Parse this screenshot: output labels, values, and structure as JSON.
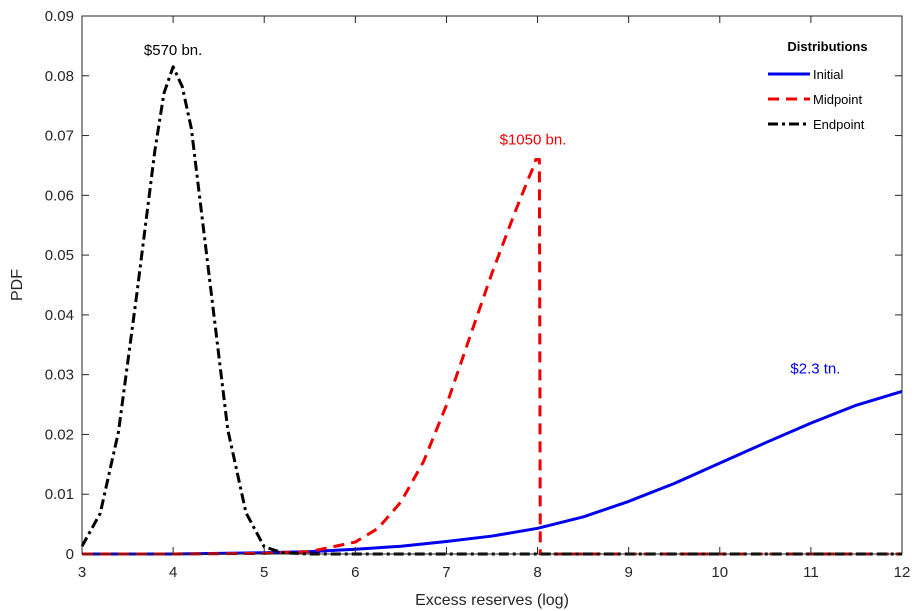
{
  "chart_data": {
    "type": "line",
    "title": "",
    "xlabel": "Excess reserves (log)",
    "ylabel": "PDF",
    "xlim": [
      3,
      12
    ],
    "ylim": [
      0,
      0.09
    ],
    "xticks": [
      "3",
      "4",
      "5",
      "6",
      "7",
      "8",
      "9",
      "10",
      "11",
      "12"
    ],
    "yticks": [
      "0",
      "0.01",
      "0.02",
      "0.03",
      "0.04",
      "0.05",
      "0.06",
      "0.07",
      "0.08",
      "0.09"
    ],
    "grid": false,
    "legend": {
      "title": "Distributions",
      "placement": "top-right"
    },
    "series": [
      {
        "name": "Initial",
        "color": "#0000ee",
        "style": "solid",
        "x": [
          3,
          4,
          5,
          5.5,
          6,
          6.5,
          7,
          7.5,
          8,
          8.5,
          9,
          9.5,
          10,
          10.5,
          11,
          11.5,
          12
        ],
        "y": [
          0.0,
          0.0,
          0.0002,
          0.0004,
          0.0008,
          0.0013,
          0.0021,
          0.003,
          0.0043,
          0.0062,
          0.0088,
          0.0118,
          0.0152,
          0.0186,
          0.0219,
          0.0249,
          0.0272
        ]
      },
      {
        "name": "Midpoint",
        "color": "#ee0000",
        "style": "dashed",
        "x": [
          3,
          4,
          5,
          5.5,
          6,
          6.25,
          6.5,
          6.75,
          7,
          7.25,
          7.5,
          7.75,
          7.9,
          7.97,
          7.98,
          8.02,
          8.03,
          9,
          10,
          11,
          12
        ],
        "y": [
          0.0,
          0.0,
          0.0001,
          0.0004,
          0.002,
          0.0043,
          0.0087,
          0.0155,
          0.0249,
          0.036,
          0.047,
          0.0571,
          0.0628,
          0.0653,
          0.066,
          0.066,
          0.0,
          0.0,
          0.0,
          0.0,
          0.0
        ]
      },
      {
        "name": "Endpoint",
        "color": "#000000",
        "style": "dash-dot",
        "x": [
          3,
          3.2,
          3.4,
          3.6,
          3.8,
          3.9,
          4.0,
          4.1,
          4.2,
          4.4,
          4.6,
          4.8,
          5.0,
          5.2,
          5.5,
          6,
          7,
          8,
          9,
          10,
          11,
          12
        ],
        "y": [
          0.0013,
          0.0068,
          0.0204,
          0.0433,
          0.0675,
          0.0771,
          0.0815,
          0.0782,
          0.0712,
          0.046,
          0.0208,
          0.0069,
          0.0012,
          0.0002,
          0.0,
          0.0,
          0.0,
          0.0,
          0.0,
          0.0,
          0.0,
          0.0
        ]
      }
    ],
    "annotations": [
      {
        "text": "$570 bn.",
        "x": 4.0,
        "y": 0.0835,
        "color": "#000000"
      },
      {
        "text": "$1050 bn.",
        "x": 7.95,
        "y": 0.0685,
        "color": "#ee0000"
      },
      {
        "text": "$2.3 tn.",
        "x": 11.05,
        "y": 0.0302,
        "color": "#0000ee"
      }
    ]
  }
}
